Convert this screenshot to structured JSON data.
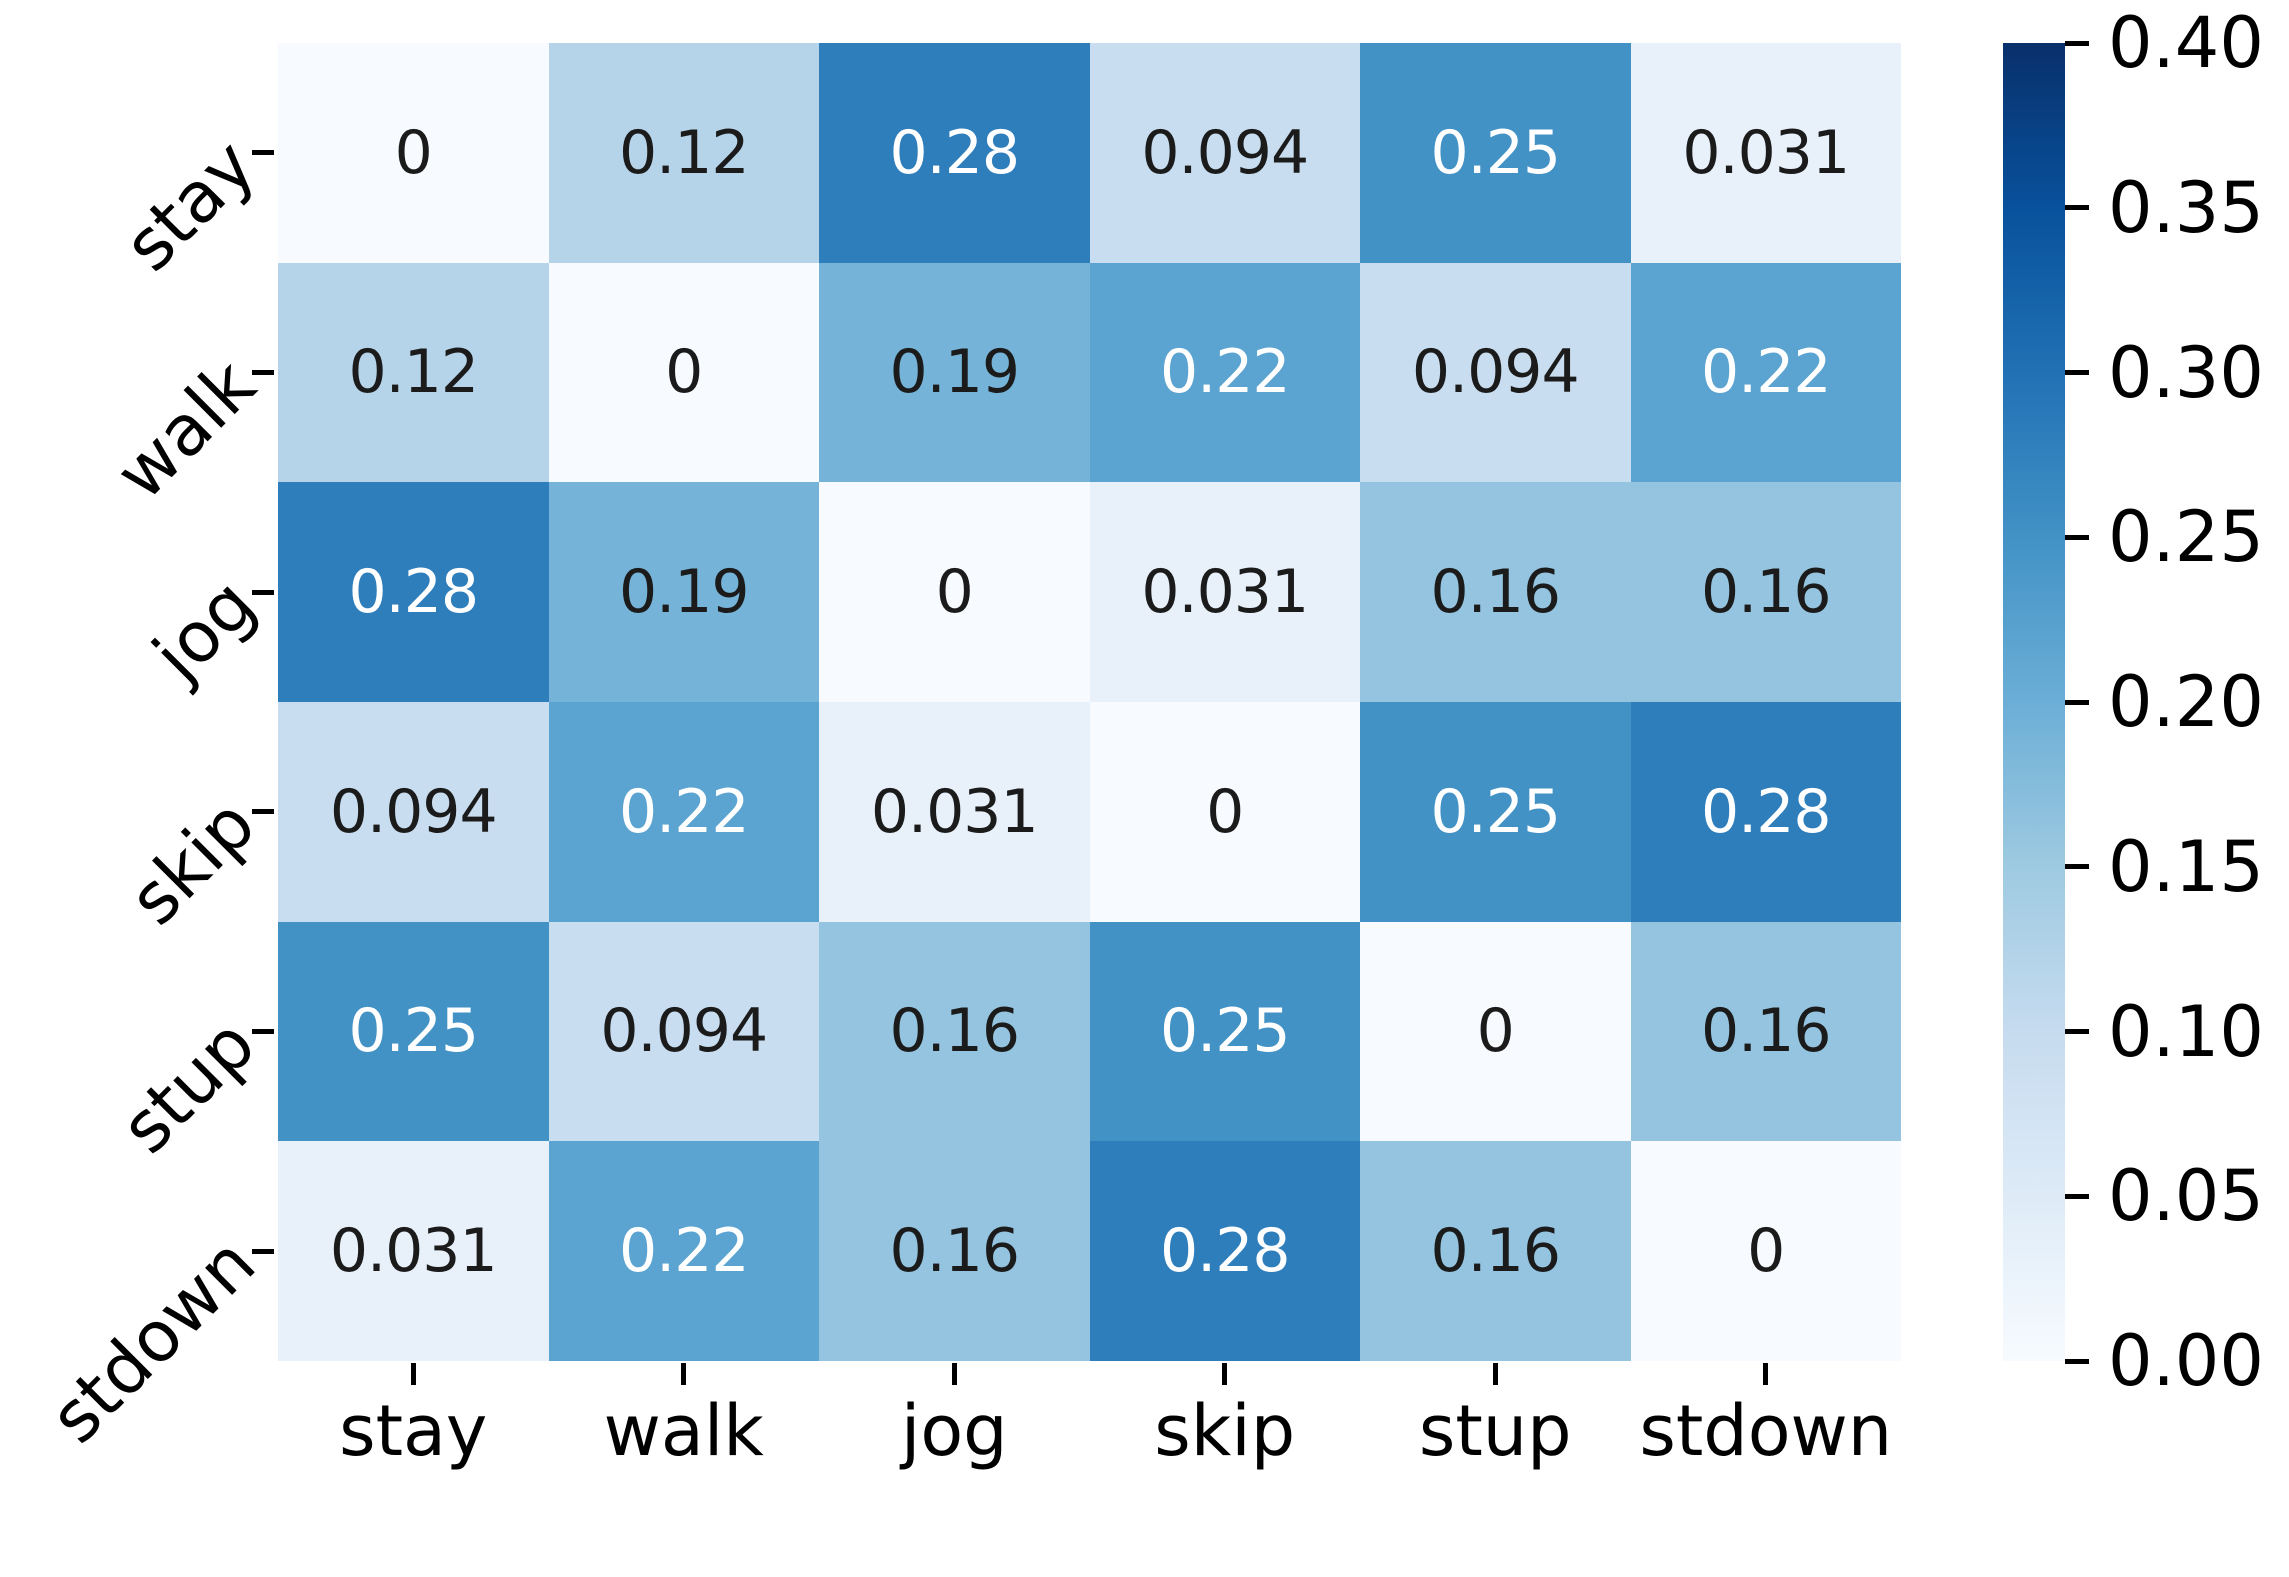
{
  "chart_data": {
    "type": "heatmap",
    "title": "",
    "xlabel": "",
    "ylabel": "",
    "categories_x": [
      "stay",
      "walk",
      "jog",
      "skip",
      "stup",
      "stdown"
    ],
    "categories_y": [
      "stay",
      "walk",
      "jog",
      "skip",
      "stup",
      "stdown"
    ],
    "matrix": [
      [
        0,
        0.12,
        0.28,
        0.094,
        0.25,
        0.031
      ],
      [
        0.12,
        0,
        0.19,
        0.22,
        0.094,
        0.22
      ],
      [
        0.28,
        0.19,
        0,
        0.031,
        0.16,
        0.16
      ],
      [
        0.094,
        0.22,
        0.031,
        0,
        0.25,
        0.28
      ],
      [
        0.25,
        0.094,
        0.16,
        0.25,
        0,
        0.16
      ],
      [
        0.031,
        0.22,
        0.16,
        0.28,
        0.16,
        0
      ]
    ],
    "cell_labels": [
      [
        "0",
        "0.12",
        "0.28",
        "0.094",
        "0.25",
        "0.031"
      ],
      [
        "0.12",
        "0",
        "0.19",
        "0.22",
        "0.094",
        "0.22"
      ],
      [
        "0.28",
        "0.19",
        "0",
        "0.031",
        "0.16",
        "0.16"
      ],
      [
        "0.094",
        "0.22",
        "0.031",
        "0",
        "0.25",
        "0.28"
      ],
      [
        "0.25",
        "0.094",
        "0.16",
        "0.25",
        "0",
        "0.16"
      ],
      [
        "0.031",
        "0.22",
        "0.16",
        "0.28",
        "0.16",
        "0"
      ]
    ],
    "value_styles": {
      "0": {
        "bg": "#f7fbff",
        "fg": "#1b1b1b"
      },
      "0.031": {
        "bg": "#e8f1fa",
        "fg": "#1b1b1b"
      },
      "0.094": {
        "bg": "#c9ddf0",
        "fg": "#1b1b1b"
      },
      "0.12": {
        "bg": "#b6d4e9",
        "fg": "#1b1b1b"
      },
      "0.16": {
        "bg": "#94c4df",
        "fg": "#1b1b1b"
      },
      "0.19": {
        "bg": "#75b4d8",
        "fg": "#1b1b1b"
      },
      "0.22": {
        "bg": "#5ba3d0",
        "fg": "#ffffff"
      },
      "0.25": {
        "bg": "#4292c6",
        "fg": "#ffffff"
      },
      "0.28": {
        "bg": "#2e7ebc",
        "fg": "#ffffff"
      }
    },
    "colorbar": {
      "min": 0.0,
      "max": 0.4,
      "tick_labels": [
        "0.40",
        "0.35",
        "0.30",
        "0.25",
        "0.20",
        "0.15",
        "0.10",
        "0.05",
        "0.00"
      ],
      "colormap": "Blues",
      "gradient_stops_bottom_to_top": [
        "#f7fbff",
        "#deebf7",
        "#c6dbef",
        "#9ecae1",
        "#6baed6",
        "#4292c6",
        "#2171b5",
        "#08519c",
        "#08306b"
      ]
    },
    "legend": null,
    "grid": false
  }
}
